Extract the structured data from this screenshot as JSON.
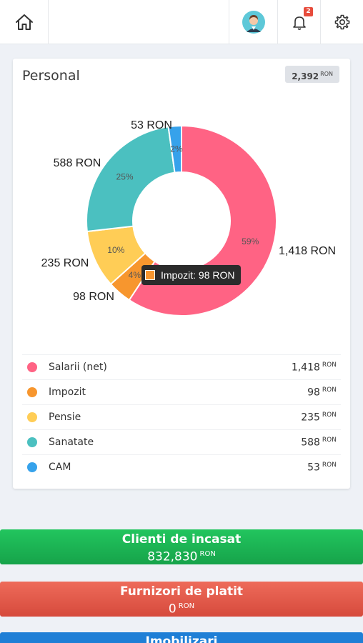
{
  "topbar": {
    "home_icon": "home-icon",
    "avatar_icon": "avatar-icon",
    "bell_icon": "bell-icon",
    "notifications_count": "2",
    "gear_icon": "gear-icon"
  },
  "card": {
    "title": "Personal",
    "total": "2,392",
    "currency": "RON"
  },
  "chart_data": {
    "type": "pie",
    "categories": [
      "Salarii (net)",
      "Impozit",
      "Pensie",
      "Sanatate",
      "CAM"
    ],
    "values": [
      1418,
      98,
      235,
      588,
      53
    ],
    "value_labels": [
      "1,418 RON",
      "98 RON",
      "235 RON",
      "588 RON",
      "53 RON"
    ],
    "percent_labels": [
      "59%",
      "4%",
      "10%",
      "25%",
      "2%"
    ],
    "colors": [
      "#ff6384",
      "#f7962e",
      "#ffcd56",
      "#4bc0c0",
      "#36a2eb"
    ],
    "donut": true,
    "legend": "bottom"
  },
  "tooltip": {
    "text": "Impozit: 98 RON",
    "color": "#f7962e"
  },
  "legend": {
    "items": [
      {
        "label": "Salarii (net)",
        "value": "1,418",
        "unit": "RON",
        "color": "#ff6384"
      },
      {
        "label": "Impozit",
        "value": "98",
        "unit": "RON",
        "color": "#f7962e"
      },
      {
        "label": "Pensie",
        "value": "235",
        "unit": "RON",
        "color": "#ffcd56"
      },
      {
        "label": "Sanatate",
        "value": "588",
        "unit": "RON",
        "color": "#4bc0c0"
      },
      {
        "label": "CAM",
        "value": "53",
        "unit": "RON",
        "color": "#36a2eb"
      }
    ]
  },
  "bars": {
    "clients": {
      "title": "Clienti de incasat",
      "value": "832,830",
      "unit": "RON",
      "color": "#1db954"
    },
    "suppliers": {
      "title": "Furnizori de platit",
      "value": "0",
      "unit": "RON",
      "color": "#e05a4a"
    },
    "assets": {
      "title": "Imobilizari",
      "color": "#1f7fd6"
    }
  }
}
